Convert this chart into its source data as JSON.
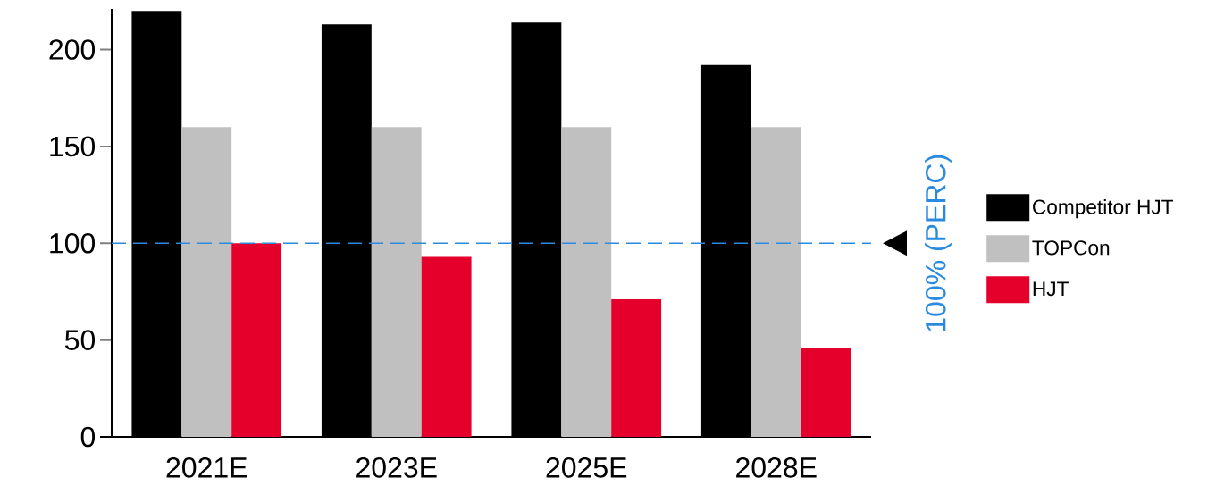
{
  "chart_data": {
    "type": "bar",
    "categories": [
      "2021E",
      "2023E",
      "2025E",
      "2028E"
    ],
    "series": [
      {
        "name": "Competitor HJT",
        "color": "#000000",
        "values": [
          220,
          213,
          214,
          192
        ]
      },
      {
        "name": "TOPCon",
        "color": "#c0c0c0",
        "values": [
          160,
          160,
          160,
          160
        ]
      },
      {
        "name": "HJT",
        "color": "#e4002b",
        "values": [
          100,
          93,
          71,
          46
        ]
      }
    ],
    "ylim": [
      0,
      221
    ],
    "yticks": [
      0,
      50,
      100,
      150,
      200
    ],
    "ref_lines": [
      {
        "axis": "y",
        "value": 100,
        "label": "100% (PERC)",
        "color": "#2a8ae0",
        "line_style": "dashed"
      }
    ],
    "legend": "right"
  }
}
